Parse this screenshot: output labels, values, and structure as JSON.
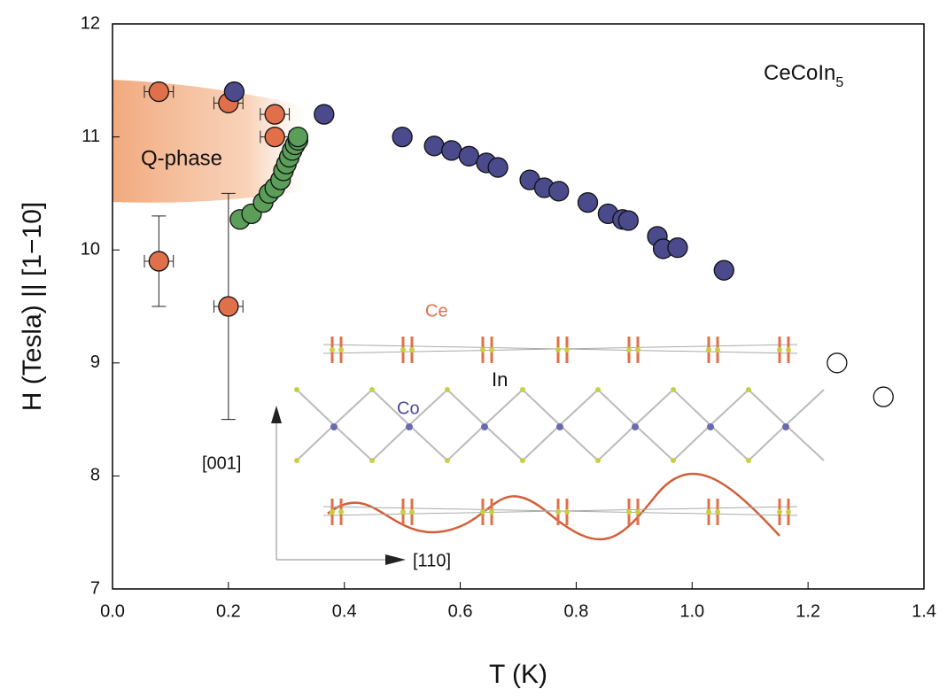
{
  "chart_data": {
    "type": "scatter",
    "xlabel": "T (K)",
    "ylabel": "H (Tesla) || [1−10]",
    "xlim": [
      0,
      1.4
    ],
    "ylim": [
      7,
      12
    ],
    "xticks": [
      {
        "value": 0,
        "label": "0.0"
      },
      0.2,
      0.4,
      0.6,
      0.8,
      {
        "value": 1,
        "label": "1.0"
      },
      1.2,
      1.4
    ],
    "yticks": [
      7,
      8,
      9,
      10,
      11,
      12
    ],
    "compound": {
      "base": "CeCoIn",
      "subscript": "5"
    },
    "region_label": "Q-phase",
    "inset_labels": {
      "ce": "Ce",
      "in": "In",
      "co": "Co",
      "vertical_axis": "[001]",
      "horizontal_axis": "[110]"
    },
    "series": [
      {
        "color": "#e0704a",
        "x": [
          0.08,
          0.2,
          0.28,
          0.28,
          0.08,
          0.2
        ],
        "values": [
          11.4,
          11.3,
          11.2,
          11.0,
          9.9,
          9.5
        ],
        "xerr": [
          0.025,
          0.025,
          0.025,
          0.025,
          0.025,
          0.025
        ],
        "yerr": [
          null,
          null,
          null,
          null,
          0.4,
          1.0
        ]
      },
      {
        "color": "#5a9e5a",
        "x": [
          0.22,
          0.24,
          0.26,
          0.27,
          0.28,
          0.29,
          0.295,
          0.3,
          0.305,
          0.31,
          0.315,
          0.32,
          0.32
        ],
        "values": [
          10.27,
          10.32,
          10.42,
          10.5,
          10.55,
          10.62,
          10.7,
          10.76,
          10.82,
          10.88,
          10.93,
          10.97,
          11.0
        ]
      },
      {
        "color": "#4a4a8c",
        "x": [
          0.21,
          0.365,
          0.5,
          0.555,
          0.585,
          0.615,
          0.645,
          0.665,
          0.72,
          0.745,
          0.77,
          0.82,
          0.855,
          0.88,
          0.89,
          0.94,
          0.95,
          0.975,
          1.055
        ],
        "values": [
          11.4,
          11.2,
          11.0,
          10.92,
          10.88,
          10.83,
          10.77,
          10.73,
          10.62,
          10.55,
          10.52,
          10.42,
          10.32,
          10.27,
          10.26,
          10.12,
          10.01,
          10.02,
          9.82
        ]
      },
      {
        "color": "#ffffff",
        "x": [
          1.25,
          1.33
        ],
        "values": [
          9.0,
          8.7
        ]
      }
    ]
  }
}
